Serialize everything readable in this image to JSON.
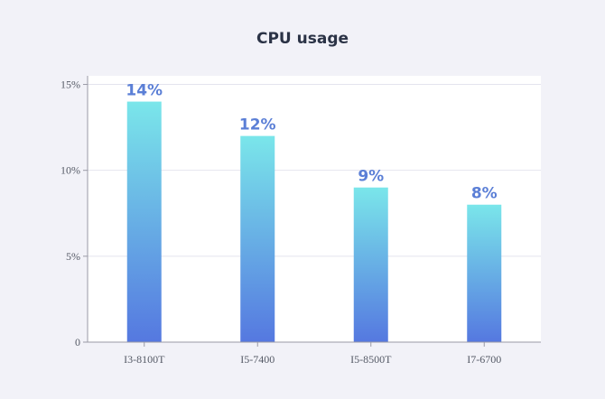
{
  "chart_data": {
    "type": "bar",
    "title": "CPU usage",
    "xlabel": "",
    "ylabel": "",
    "categories": [
      "I3-8100T",
      "I5-7400",
      "I5-8500T",
      "I7-6700"
    ],
    "values": [
      14,
      12,
      9,
      8
    ],
    "data_labels": [
      "14%",
      "12%",
      "9%",
      "8%"
    ],
    "ylim": [
      0,
      15.5
    ],
    "yticks": [
      0,
      5,
      10,
      15
    ],
    "ytick_labels": [
      "0",
      "5%",
      "10%",
      "15%"
    ],
    "grid": true,
    "legend": "none",
    "colors": {
      "bar_top": "#7ae6ea",
      "bar_bottom": "#5578e0",
      "data_label": "#5b7fd6",
      "grid": "#e4e4ee",
      "axis": "#9a9aa6"
    }
  }
}
